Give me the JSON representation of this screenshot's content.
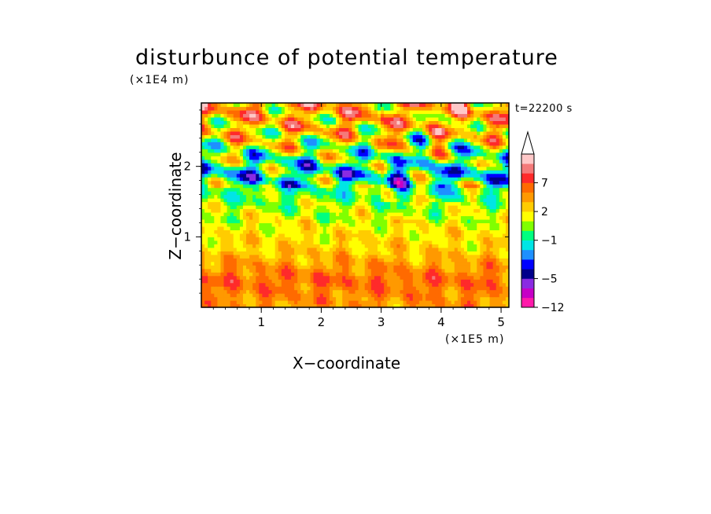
{
  "chart_data": {
    "type": "heatmap",
    "title": "disturbunce of potential temperature",
    "xlabel": "X−coordinate",
    "ylabel": "Z−coordinate",
    "x_unit": "(×1E5 m)",
    "y_unit": "(×1E4 m)",
    "time_label": "t=22200 s",
    "xlim": [
      0,
      5.13
    ],
    "ylim": [
      0,
      2.9
    ],
    "x_ticks": [
      "1",
      "2",
      "3",
      "4",
      "5"
    ],
    "x_tick_values": [
      1,
      2,
      3,
      4,
      5
    ],
    "y_ticks": [
      "1",
      "2"
    ],
    "y_tick_values": [
      1,
      2
    ],
    "colorbar": {
      "tick_labels": [
        "7",
        "2",
        "−1",
        "−5",
        "−12"
      ],
      "tick_values": [
        7,
        2,
        -1,
        -5,
        -12
      ],
      "levels": [
        -12,
        -9,
        -7,
        -5,
        -4,
        -3,
        -2,
        -1,
        0,
        1,
        2,
        3,
        5,
        7,
        9,
        12
      ],
      "colors": [
        "#ff1aaa",
        "#c600c6",
        "#8a2be2",
        "#00008b",
        "#0000ff",
        "#1e90ff",
        "#00e5e5",
        "#00ff80",
        "#80ff00",
        "#ffff00",
        "#ffcc00",
        "#ff9900",
        "#ff6a00",
        "#ff2a2a",
        "#f47a7a",
        "#ffc8c8"
      ],
      "extend": "max"
    },
    "profile": [
      {
        "z": 0.0,
        "level": 11
      },
      {
        "z": 0.4,
        "level": 12
      },
      {
        "z": 0.8,
        "level": 10
      },
      {
        "z": 1.2,
        "level": 9
      },
      {
        "z": 1.5,
        "level": 8
      },
      {
        "z": 1.9,
        "level": 6
      },
      {
        "z": 2.5,
        "level": 10
      },
      {
        "z": 2.9,
        "level": 11
      }
    ]
  }
}
